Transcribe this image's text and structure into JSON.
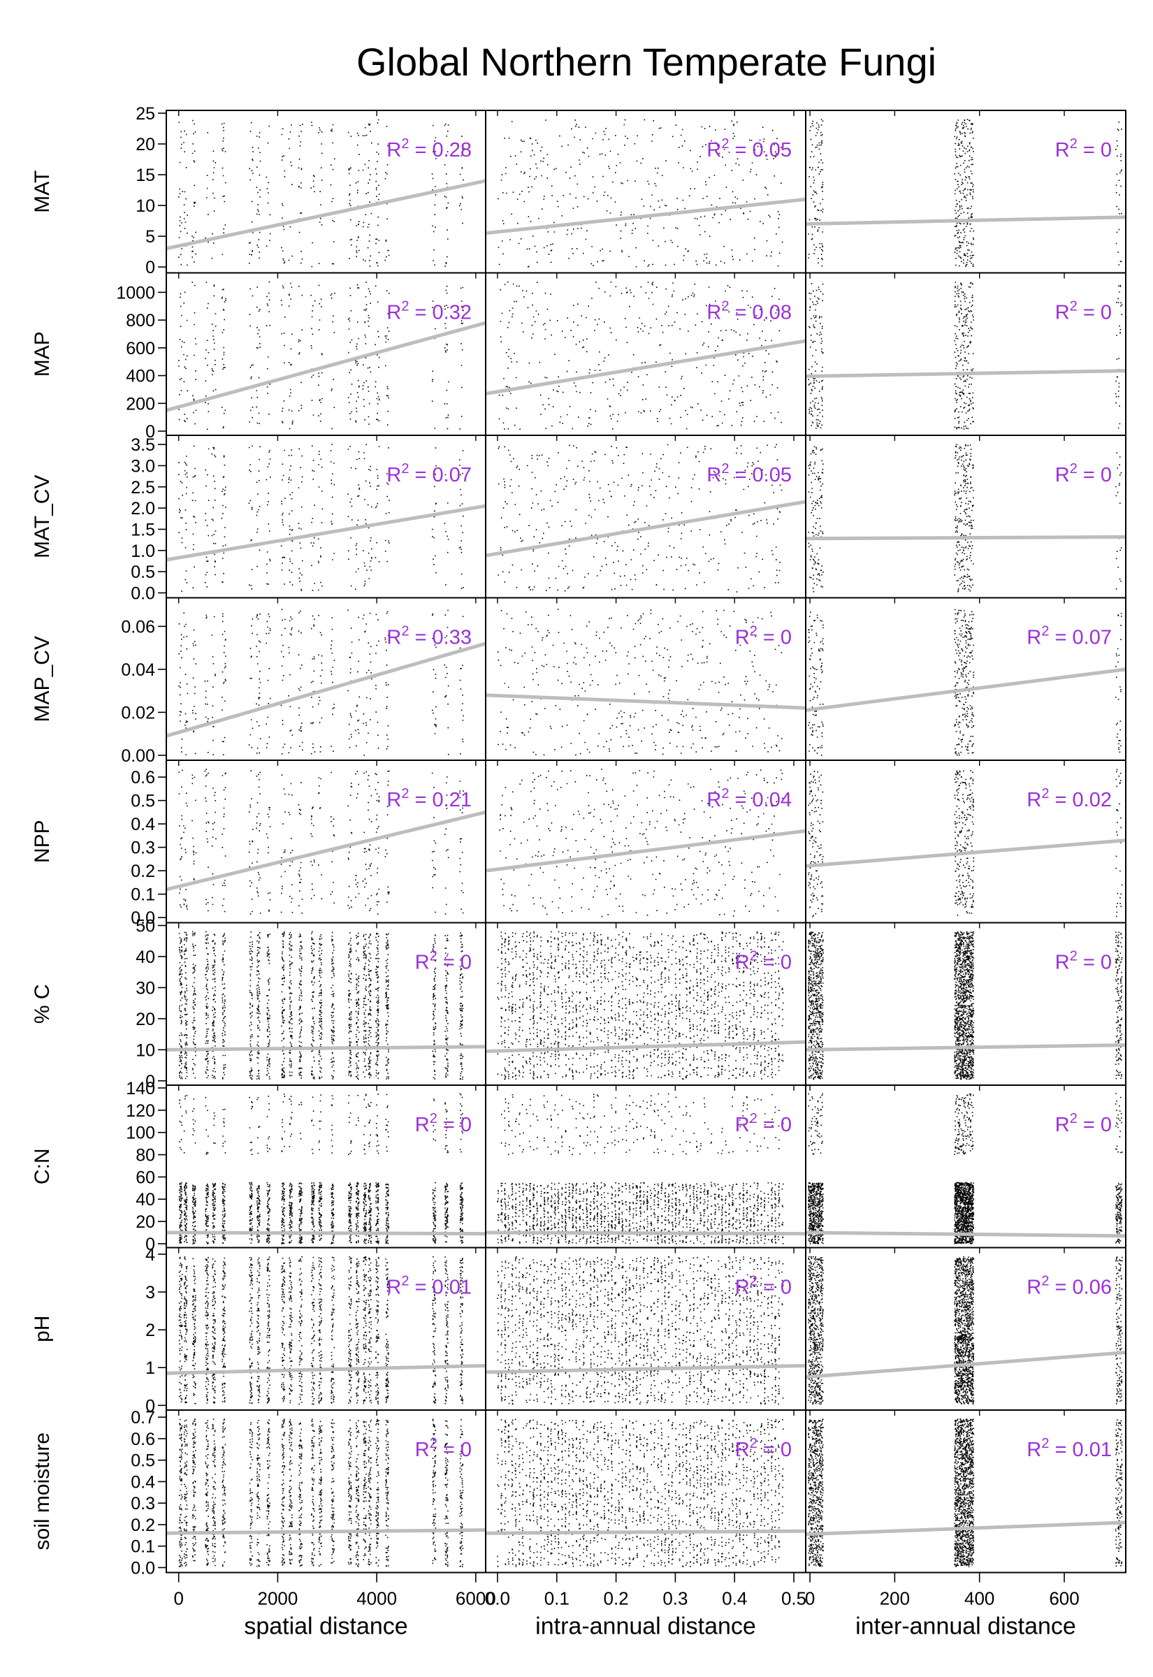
{
  "chart_data": {
    "type": "scatter",
    "title": "Global Northern Temperate Fungi",
    "columns": [
      {
        "xlabel": "spatial distance",
        "xlim": [
          -250,
          6200
        ],
        "ticks": [
          0,
          2000,
          4000,
          6000
        ],
        "tick_labels": [
          "0",
          "2000",
          "4000",
          "6000"
        ]
      },
      {
        "xlabel": "intra-annual distance",
        "xlim": [
          -0.02,
          0.52
        ],
        "ticks": [
          0.0,
          0.1,
          0.2,
          0.3,
          0.4,
          0.5
        ],
        "tick_labels": [
          "0.0",
          "0.1",
          "0.2",
          "0.3",
          "0.4",
          "0.5"
        ]
      },
      {
        "xlabel": "inter-annual distance",
        "xlim": [
          -10,
          745
        ],
        "ticks": [
          0,
          200,
          400,
          600
        ],
        "tick_labels": [
          "0",
          "200",
          "400",
          "600"
        ]
      }
    ],
    "rows": [
      {
        "ylabel": "MAT",
        "ylim": [
          -0.5,
          25
        ],
        "yticks": [
          0,
          5,
          10,
          15,
          20,
          25
        ],
        "ytick_labels": [
          "0",
          "5",
          "10",
          "15",
          "20",
          "25"
        ],
        "panels": [
          {
            "r2": "0.28",
            "fit": [
              [
                -250,
                3.0
              ],
              [
                6200,
                14.0
              ]
            ]
          },
          {
            "r2": "0.05",
            "fit": [
              [
                -0.02,
                5.5
              ],
              [
                0.52,
                11.0
              ]
            ]
          },
          {
            "r2": "0",
            "fit": [
              [
                -10,
                7.0
              ],
              [
                745,
                8.1
              ]
            ]
          }
        ]
      },
      {
        "ylabel": "MAP",
        "ylim": [
          -10,
          1120
        ],
        "yticks": [
          0,
          200,
          400,
          600,
          800,
          1000
        ],
        "ytick_labels": [
          "0",
          "200",
          "400",
          "600",
          "800",
          "1000"
        ],
        "panels": [
          {
            "r2": "0.32",
            "fit": [
              [
                -250,
                150
              ],
              [
                6200,
                780
              ]
            ]
          },
          {
            "r2": "0.08",
            "fit": [
              [
                -0.02,
                270
              ],
              [
                0.52,
                650
              ]
            ]
          },
          {
            "r2": "0",
            "fit": [
              [
                -10,
                395
              ],
              [
                745,
                435
              ]
            ]
          }
        ]
      },
      {
        "ylabel": "MAT_CV",
        "ylim": [
          -0.05,
          3.65
        ],
        "yticks": [
          0.0,
          0.5,
          1.0,
          1.5,
          2.0,
          2.5,
          3.0,
          3.5
        ],
        "ytick_labels": [
          "0.0",
          "0.5",
          "1.0",
          "1.5",
          "2.0",
          "2.5",
          "3.0",
          "3.5"
        ],
        "panels": [
          {
            "r2": "0.07",
            "fit": [
              [
                -250,
                0.78
              ],
              [
                6200,
                2.05
              ]
            ]
          },
          {
            "r2": "0.05",
            "fit": [
              [
                -0.02,
                0.88
              ],
              [
                0.52,
                2.15
              ]
            ]
          },
          {
            "r2": "0",
            "fit": [
              [
                -10,
                1.28
              ],
              [
                745,
                1.32
              ]
            ]
          }
        ]
      },
      {
        "ylabel": "MAP_CV",
        "ylim": [
          -0.001,
          0.072
        ],
        "yticks": [
          0.0,
          0.02,
          0.04,
          0.06
        ],
        "ytick_labels": [
          "0.00",
          "0.02",
          "0.04",
          "0.06"
        ],
        "panels": [
          {
            "r2": "0.33",
            "fit": [
              [
                -250,
                0.009
              ],
              [
                6200,
                0.052
              ]
            ]
          },
          {
            "r2": "0",
            "fit": [
              [
                -0.02,
                0.028
              ],
              [
                0.52,
                0.022
              ]
            ]
          },
          {
            "r2": "0.07",
            "fit": [
              [
                -10,
                0.021
              ],
              [
                745,
                0.04
              ]
            ]
          }
        ]
      },
      {
        "ylabel": "NPP",
        "ylim": [
          -0.01,
          0.66
        ],
        "yticks": [
          0.0,
          0.1,
          0.2,
          0.3,
          0.4,
          0.5,
          0.6
        ],
        "ytick_labels": [
          "0.0",
          "0.1",
          "0.2",
          "0.3",
          "0.4",
          "0.5",
          "0.6"
        ],
        "panels": [
          {
            "r2": "0.21",
            "fit": [
              [
                -250,
                0.12
              ],
              [
                6200,
                0.45
              ]
            ]
          },
          {
            "r2": "0.04",
            "fit": [
              [
                -0.02,
                0.2
              ],
              [
                0.52,
                0.37
              ]
            ]
          },
          {
            "r2": "0.02",
            "fit": [
              [
                -10,
                0.22
              ],
              [
                745,
                0.33
              ]
            ]
          }
        ]
      },
      {
        "ylabel": "% C",
        "ylim": [
          -0.5,
          50
        ],
        "yticks": [
          0,
          10,
          20,
          30,
          40,
          50
        ],
        "ytick_labels": [
          "0",
          "10",
          "20",
          "30",
          "40",
          "50"
        ],
        "panels": [
          {
            "r2": "0",
            "fit": [
              [
                -250,
                10.0
              ],
              [
                6200,
                11.0
              ]
            ]
          },
          {
            "r2": "0",
            "fit": [
              [
                -0.02,
                9.5
              ],
              [
                0.52,
                12.5
              ]
            ]
          },
          {
            "r2": "0",
            "fit": [
              [
                -10,
                10.0
              ],
              [
                745,
                11.5
              ]
            ]
          }
        ]
      },
      {
        "ylabel": "C:N",
        "ylim": [
          -1,
          140
        ],
        "yticks": [
          0,
          20,
          40,
          60,
          80,
          100,
          120,
          140
        ],
        "ytick_labels": [
          "0",
          "20",
          "40",
          "60",
          "80",
          "100",
          "120",
          "140"
        ],
        "panels": [
          {
            "r2": "0",
            "fit": [
              [
                -250,
                10
              ],
              [
                6200,
                9
              ]
            ]
          },
          {
            "r2": "0",
            "fit": [
              [
                -0.02,
                10
              ],
              [
                0.52,
                9
              ]
            ]
          },
          {
            "r2": "0",
            "fit": [
              [
                -10,
                10
              ],
              [
                745,
                7
              ]
            ]
          }
        ]
      },
      {
        "ylabel": "pH",
        "ylim": [
          -0.05,
          4.1
        ],
        "yticks": [
          0,
          1,
          2,
          3,
          4
        ],
        "ytick_labels": [
          "0",
          "1",
          "2",
          "3",
          "4"
        ],
        "panels": [
          {
            "r2": "0.01",
            "fit": [
              [
                -250,
                0.85
              ],
              [
                6200,
                1.05
              ]
            ]
          },
          {
            "r2": "0",
            "fit": [
              [
                -0.02,
                0.88
              ],
              [
                0.52,
                1.05
              ]
            ]
          },
          {
            "r2": "0.06",
            "fit": [
              [
                -10,
                0.75
              ],
              [
                745,
                1.4
              ]
            ]
          }
        ]
      },
      {
        "ylabel": "soil moisture",
        "ylim": [
          -0.01,
          0.72
        ],
        "yticks": [
          0.0,
          0.1,
          0.2,
          0.3,
          0.4,
          0.5,
          0.6,
          0.7
        ],
        "ytick_labels": [
          "0.0",
          "0.1",
          "0.2",
          "0.3",
          "0.4",
          "0.5",
          "0.6",
          "0.7"
        ],
        "panels": [
          {
            "r2": "0",
            "fit": [
              [
                -250,
                0.16
              ],
              [
                6200,
                0.175
              ]
            ]
          },
          {
            "r2": "0",
            "fit": [
              [
                -0.02,
                0.16
              ],
              [
                0.52,
                0.17
              ]
            ]
          },
          {
            "r2": "0.01",
            "fit": [
              [
                -10,
                0.155
              ],
              [
                745,
                0.21
              ]
            ]
          }
        ]
      }
    ],
    "r2_prefix": "R",
    "r2_sup": "2",
    "r2_eq": " = ",
    "colors": {
      "points": "#000000",
      "fit": "#bdbdbd",
      "r2_label": "#9b30d9",
      "frame": "#000000"
    }
  }
}
